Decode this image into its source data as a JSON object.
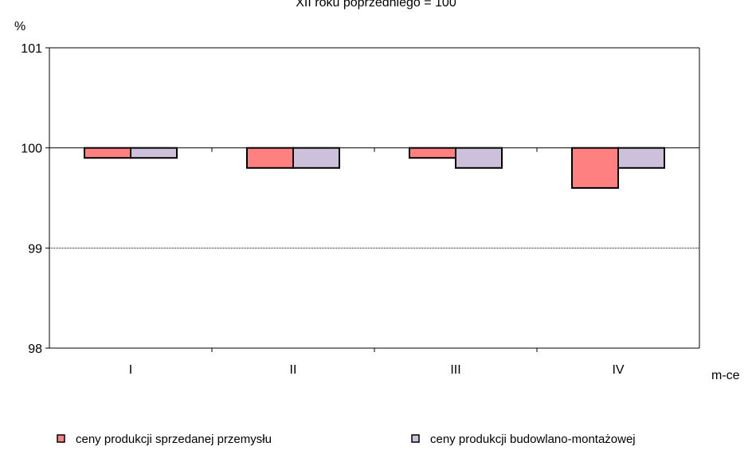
{
  "chart_data": {
    "type": "bar",
    "title": "XII roku poprzedniego = 100",
    "ylabel": "%",
    "xlabel": "m-ce",
    "categories": [
      "I",
      "II",
      "III",
      "IV"
    ],
    "ylim": [
      98,
      101
    ],
    "yticks": [
      98,
      99,
      100,
      101
    ],
    "baseline": 100,
    "grid": "dotted horizontal at 99, solid at 100",
    "legend_position": "bottom",
    "series": [
      {
        "name": "ceny produkcji sprzedanej przemysłu",
        "color": "#FF8080",
        "values": [
          99.9,
          99.8,
          99.9,
          99.6
        ]
      },
      {
        "name": "ceny produkcji budowlano-montażowej",
        "color": "#CCC0DA",
        "values": [
          99.9,
          99.8,
          99.8,
          99.8
        ]
      }
    ]
  }
}
